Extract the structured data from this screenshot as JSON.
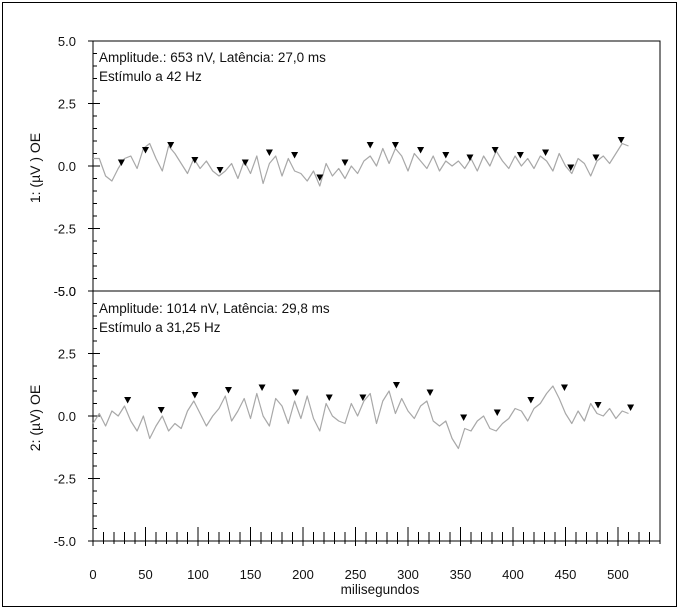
{
  "chart_data": {
    "type": "line",
    "xlabel": "milisegundos",
    "xlim": [
      0,
      540
    ],
    "xticks": [
      0,
      50,
      100,
      150,
      200,
      250,
      300,
      350,
      400,
      450,
      500
    ],
    "xticks_labels": [
      "0",
      "50",
      "100",
      "150",
      "200",
      "250",
      "300",
      "350",
      "400",
      "450",
      "500"
    ],
    "line_color": "#a8a8a8",
    "marker_color": "#000000",
    "panels": [
      {
        "ylabel": "1:  (µV )  OE",
        "ylim": [
          -5.0,
          5.0
        ],
        "yticks": [
          5.0,
          2.5,
          0.0,
          -2.5,
          -5.0
        ],
        "yticks_labels": [
          "5.0",
          "2.5",
          "0.0",
          "-2.5",
          "-5.0"
        ],
        "annotation_line1": "Amplitude.: 653 nV, Latência:  27,0 ms",
        "annotation_line2": "Estímulo a 42 Hz",
        "series": {
          "x": [
            0,
            6,
            12,
            18,
            24,
            30,
            36,
            42,
            48,
            54,
            60,
            66,
            72,
            78,
            84,
            90,
            96,
            102,
            108,
            114,
            120,
            126,
            132,
            138,
            144,
            150,
            156,
            162,
            168,
            174,
            180,
            186,
            192,
            198,
            204,
            210,
            216,
            222,
            228,
            234,
            240,
            246,
            252,
            258,
            264,
            270,
            276,
            282,
            288,
            294,
            300,
            306,
            312,
            318,
            324,
            330,
            336,
            342,
            348,
            354,
            360,
            366,
            372,
            378,
            384,
            390,
            396,
            402,
            408,
            414,
            420,
            426,
            432,
            438,
            444,
            450,
            456,
            462,
            468,
            474,
            480,
            486,
            492,
            498,
            504,
            510
          ],
          "y": [
            0.3,
            0.3,
            -0.4,
            -0.6,
            -0.1,
            0.3,
            0.4,
            -0.1,
            0.7,
            0.9,
            0.3,
            -0.2,
            0.8,
            0.5,
            0.1,
            -0.3,
            0.3,
            -0.1,
            0.2,
            -0.2,
            -0.4,
            -0.2,
            0.1,
            -0.5,
            0.2,
            -0.3,
            0.4,
            -0.7,
            0.1,
            0.4,
            -0.4,
            0.3,
            -0.2,
            -0.3,
            -0.6,
            -0.2,
            -0.8,
            0.1,
            -0.4,
            -0.1,
            -0.5,
            0.0,
            -0.3,
            0.2,
            0.4,
            0.0,
            0.7,
            0.1,
            0.7,
            0.4,
            -0.2,
            0.5,
            0.2,
            -0.1,
            0.4,
            -0.2,
            0.2,
            0.0,
            0.2,
            -0.1,
            0.3,
            -0.2,
            0.4,
            0.0,
            0.6,
            0.2,
            -0.1,
            0.4,
            0.0,
            0.3,
            -0.1,
            0.4,
            0.2,
            -0.2,
            0.5,
            0.0,
            -0.3,
            0.3,
            0.1,
            -0.4,
            0.2,
            0.4,
            0.1,
            0.5,
            0.9,
            0.8
          ]
        },
        "markers": {
          "x": [
            27,
            50,
            74,
            97,
            121,
            145,
            168,
            192,
            216,
            240,
            264,
            288,
            312,
            336,
            359,
            383,
            407,
            431,
            455,
            479,
            503
          ],
          "y": [
            -0.1,
            0.4,
            0.6,
            0.0,
            -0.4,
            -0.1,
            0.3,
            0.2,
            -0.7,
            -0.1,
            0.6,
            0.6,
            0.4,
            0.2,
            0.1,
            0.4,
            0.2,
            0.3,
            -0.3,
            0.1,
            0.8
          ]
        }
      },
      {
        "ylabel": "2:  (µV)  OE",
        "ylim": [
          -5.0,
          5.0
        ],
        "yticks": [
          5.0,
          2.5,
          0.0,
          -2.5,
          -5.0
        ],
        "yticks_labels": [
          "5.0",
          "2.5",
          "0.0",
          "-2.5",
          "-5.0"
        ],
        "annotation_line1": "Amplitude: 1014 nV, Latência:  29,8 ms",
        "annotation_line2": "Estímulo a 31,25 Hz",
        "series": {
          "x": [
            0,
            6,
            12,
            18,
            24,
            30,
            36,
            42,
            48,
            54,
            60,
            66,
            72,
            78,
            84,
            90,
            96,
            102,
            108,
            114,
            120,
            126,
            132,
            138,
            144,
            150,
            156,
            162,
            168,
            174,
            180,
            186,
            192,
            198,
            204,
            210,
            216,
            222,
            228,
            234,
            240,
            246,
            252,
            258,
            264,
            270,
            276,
            282,
            288,
            294,
            300,
            306,
            312,
            318,
            324,
            330,
            336,
            342,
            348,
            354,
            360,
            366,
            372,
            378,
            384,
            390,
            396,
            402,
            408,
            414,
            420,
            426,
            432,
            438,
            444,
            450,
            456,
            462,
            468,
            474,
            480,
            486,
            492,
            498,
            504,
            510
          ],
          "y": [
            -0.3,
            0.1,
            -0.4,
            0.2,
            0.0,
            0.4,
            -0.2,
            -0.6,
            0.0,
            -0.9,
            -0.4,
            0.0,
            -0.6,
            -0.3,
            -0.5,
            0.2,
            0.6,
            0.1,
            -0.4,
            0.0,
            0.3,
            0.8,
            -0.2,
            0.2,
            0.7,
            -0.1,
            0.9,
            0.0,
            -0.4,
            0.7,
            0.4,
            -0.3,
            0.6,
            -0.1,
            0.8,
            -0.1,
            -0.6,
            0.5,
            0.0,
            -0.2,
            -0.3,
            0.5,
            0.0,
            0.6,
            0.9,
            -0.3,
            0.6,
            1.0,
            0.1,
            0.7,
            0.2,
            -0.1,
            0.4,
            0.6,
            -0.2,
            -0.4,
            -0.2,
            -0.9,
            -1.3,
            -0.5,
            -0.6,
            -0.2,
            0.0,
            -0.5,
            -0.6,
            -0.3,
            -0.1,
            0.3,
            0.2,
            -0.2,
            0.3,
            0.5,
            0.9,
            1.2,
            0.7,
            0.1,
            -0.3,
            0.2,
            -0.2,
            0.5,
            0.1,
            0.0,
            0.3,
            -0.1,
            0.2,
            0.1
          ]
        },
        "markers": {
          "x": [
            33,
            65,
            97,
            129,
            161,
            193,
            225,
            257,
            289,
            321,
            353,
            385,
            417,
            449,
            481,
            512
          ],
          "y": [
            0.4,
            0.0,
            0.6,
            0.8,
            0.9,
            0.7,
            0.5,
            0.5,
            1.0,
            0.7,
            -0.3,
            -0.1,
            0.4,
            0.9,
            0.2,
            0.1
          ]
        }
      }
    ]
  }
}
